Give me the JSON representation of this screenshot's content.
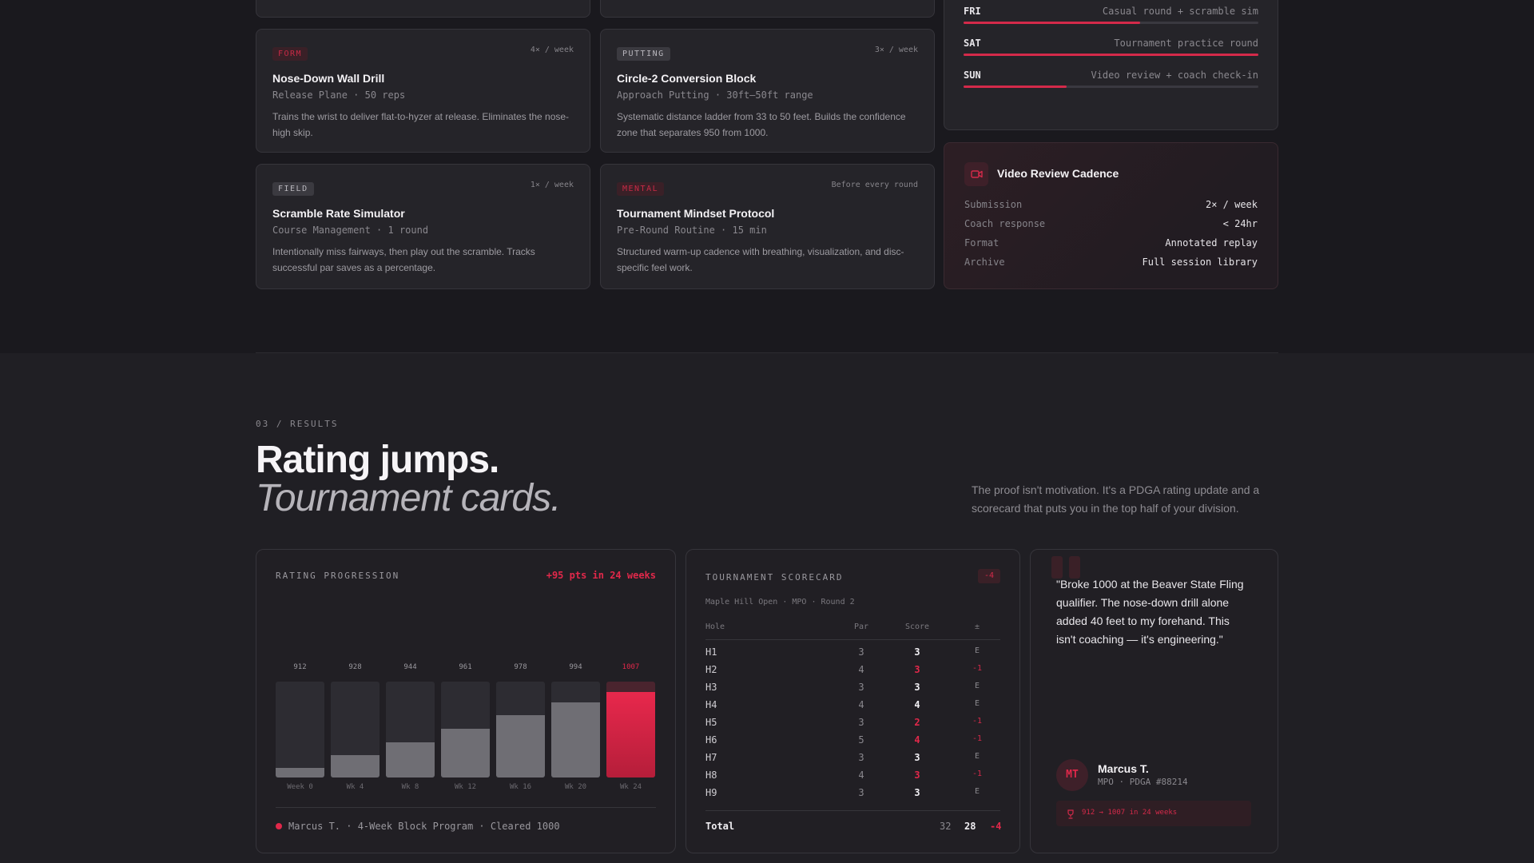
{
  "drills": [
    {
      "tag": "FORM",
      "tag_style": "red",
      "freq": "4× / week",
      "title": "Nose-Down Wall Drill",
      "sub": "Release Plane · 50 reps",
      "desc": "Trains the wrist to deliver flat-to-hyzer at release. Eliminates the nose-high skip."
    },
    {
      "tag": "PUTTING",
      "tag_style": "gray",
      "freq": "3× / week",
      "title": "Circle-2 Conversion Block",
      "sub": "Approach Putting · 30ft–50ft range",
      "desc": "Systematic distance ladder from 33 to 50 feet. Builds the confidence zone that separates 950 from 1000."
    },
    {
      "tag": "FIELD",
      "tag_style": "gray",
      "freq": "1× / week",
      "title": "Scramble Rate Simulator",
      "sub": "Course Management · 1 round",
      "desc": "Intentionally miss fairways, then play out the scramble. Tracks successful par saves as a percentage."
    },
    {
      "tag": "MENTAL",
      "tag_style": "red",
      "freq": "Before every round",
      "title": "Tournament Mindset Protocol",
      "sub": "Pre-Round Routine · 15 min",
      "desc": "Structured warm-up cadence with breathing, visualization, and disc-specific feel work."
    }
  ],
  "schedule": [
    {
      "day": "FRI",
      "activity": "Casual round + scramble sim",
      "progress": 0.6
    },
    {
      "day": "SAT",
      "activity": "Tournament practice round",
      "progress": 1.0
    },
    {
      "day": "SUN",
      "activity": "Video review + coach check-in",
      "progress": 0.35
    }
  ],
  "video": {
    "icon": "video-camera-icon",
    "title": "Video Review Cadence",
    "rows": [
      {
        "key": "Submission",
        "value": "2× / week"
      },
      {
        "key": "Coach response",
        "value": "< 24hr"
      },
      {
        "key": "Format",
        "value": "Annotated replay"
      },
      {
        "key": "Archive",
        "value": "Full session library"
      }
    ]
  },
  "results": {
    "eyebrow": "03 / RESULTS",
    "headline": "Rating jumps.",
    "headline_italic": "Tournament cards.",
    "lede": "The proof isn't motivation. It's a PDGA rating update and a scorecard that puts you in the top half of your division."
  },
  "rating": {
    "label": "RATING PROGRESSION",
    "delta": "+95 pts in 24 weeks",
    "footer": "Marcus T. · 4-Week Block Program · Cleared 1000",
    "accent": "#e0284a"
  },
  "chart_data": {
    "type": "bar",
    "categories": [
      "Week 0",
      "Wk 4",
      "Wk 8",
      "Wk 12",
      "Wk 16",
      "Wk 20",
      "Wk 24"
    ],
    "values": [
      912,
      928,
      944,
      961,
      978,
      994,
      1007
    ],
    "ylim": [
      900,
      1020
    ],
    "highlight_index": 6,
    "grid": false
  },
  "scorecard": {
    "label": "TOURNAMENT SCORECARD",
    "badge": "-4",
    "event": "Maple Hill Open · MPO · Round 2",
    "headers": {
      "hole": "Hole",
      "par": "Par",
      "score": "Score",
      "pm": "±"
    },
    "rows": [
      {
        "hole": "H1",
        "par": "3",
        "score": "3",
        "pm": "E"
      },
      {
        "hole": "H2",
        "par": "4",
        "score": "3",
        "pm": "-1"
      },
      {
        "hole": "H3",
        "par": "3",
        "score": "3",
        "pm": "E"
      },
      {
        "hole": "H4",
        "par": "4",
        "score": "4",
        "pm": "E"
      },
      {
        "hole": "H5",
        "par": "3",
        "score": "2",
        "pm": "-1"
      },
      {
        "hole": "H6",
        "par": "5",
        "score": "4",
        "pm": "-1"
      },
      {
        "hole": "H7",
        "par": "3",
        "score": "3",
        "pm": "E"
      },
      {
        "hole": "H8",
        "par": "4",
        "score": "3",
        "pm": "-1"
      },
      {
        "hole": "H9",
        "par": "3",
        "score": "3",
        "pm": "E"
      }
    ],
    "total": {
      "label": "Total",
      "par": "32",
      "score": "28",
      "pm": "-4"
    }
  },
  "testimonial": {
    "quote": "\"Broke 1000 at the Beaver State Fling qualifier. The nose-down drill alone added 40 feet to my forehand. This isn't coaching — it's engineering.\"",
    "initials": "MT",
    "name": "Marcus T.",
    "meta": "MPO · PDGA #88214",
    "badge_icon": "trophy-icon",
    "badge": "912 → 1007 in 24 weeks"
  }
}
